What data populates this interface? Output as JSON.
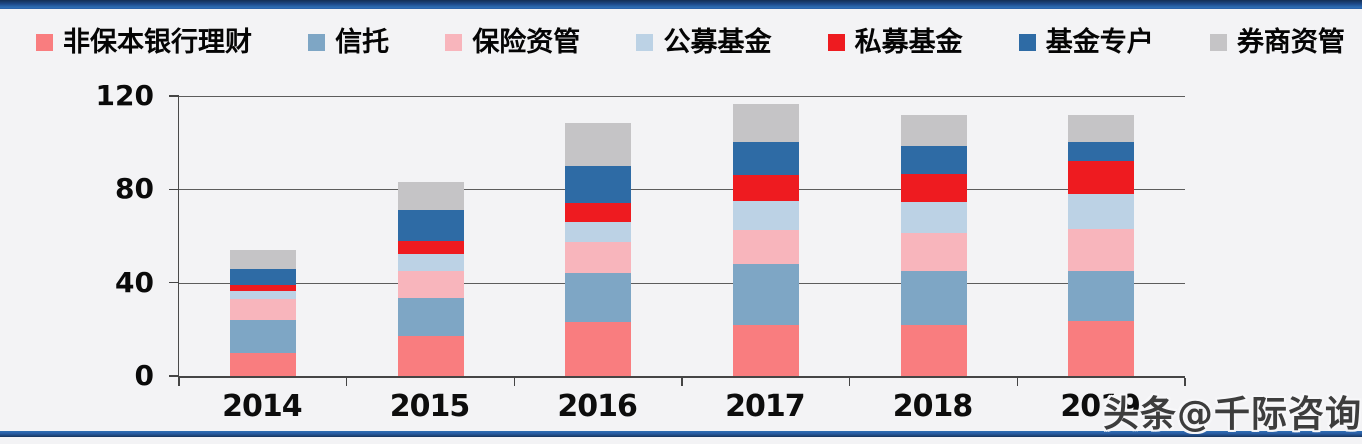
{
  "page": {
    "background": "#f3f3f5",
    "accent_border_top": "#1d4a8a",
    "accent_border_bottom": "#2a5ea6"
  },
  "watermark": {
    "text": "头条@千际咨询"
  },
  "chart_data": {
    "type": "bar",
    "stacked": true,
    "title": "",
    "xlabel": "",
    "ylabel": "",
    "categories": [
      "2014",
      "2015",
      "2016",
      "2017",
      "2018",
      "2019"
    ],
    "series": [
      {
        "name": "非保本银行理财",
        "color": "#F97D7F",
        "values": [
          10,
          17,
          23,
          22,
          22,
          23.5
        ]
      },
      {
        "name": "信托",
        "color": "#7EA6C5",
        "values": [
          14,
          16.5,
          21,
          26,
          23,
          21.5
        ]
      },
      {
        "name": "保险资管",
        "color": "#F8B5BC",
        "values": [
          9,
          11.5,
          13.5,
          14.5,
          16.5,
          18
        ]
      },
      {
        "name": "公募基金",
        "color": "#BCD2E5",
        "values": [
          3.5,
          7.5,
          8.5,
          12.5,
          13,
          15
        ]
      },
      {
        "name": "私募基金",
        "color": "#EE1B20",
        "values": [
          2.5,
          5.5,
          8,
          11,
          12,
          14
        ]
      },
      {
        "name": "基金专户",
        "color": "#2E6BA5",
        "values": [
          7,
          13,
          16,
          14.5,
          12,
          8.5
        ]
      },
      {
        "name": "券商资管",
        "color": "#C5C4C6",
        "values": [
          8,
          12,
          18.5,
          16,
          13.5,
          11.5
        ]
      }
    ],
    "totals": [
      54,
      83,
      108.5,
      116.5,
      112,
      112
    ],
    "ylim": [
      0,
      120
    ],
    "yticks": [
      0,
      40,
      80,
      120
    ],
    "grid": true,
    "legend_position": "top"
  }
}
